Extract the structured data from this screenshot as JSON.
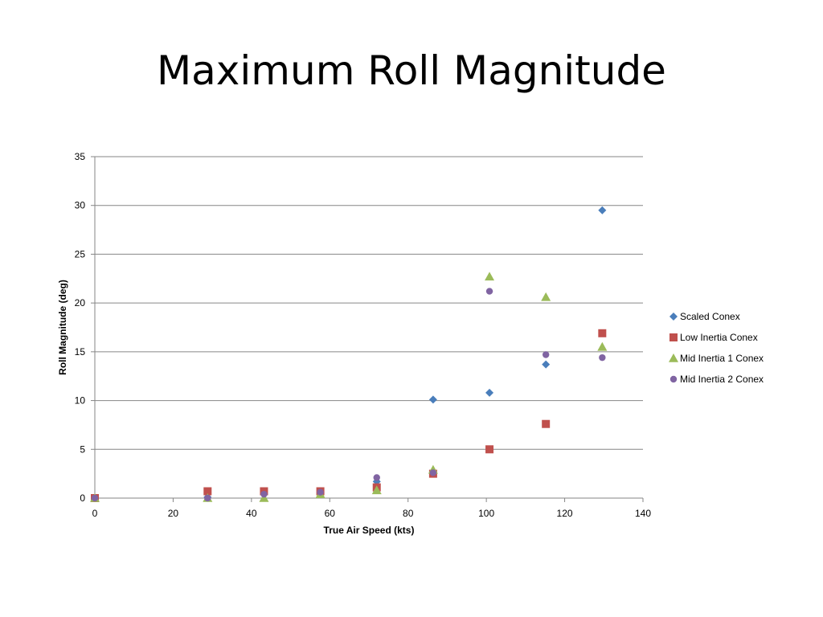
{
  "slide": {
    "title": "Maximum Roll Magnitude"
  },
  "chart_data": {
    "type": "scatter",
    "title": "",
    "xlabel": "True Air Speed (kts)",
    "ylabel": "Roll Magnitude (deg)",
    "xlim": [
      0,
      140
    ],
    "ylim": [
      0,
      35
    ],
    "xticks": [
      0,
      20,
      40,
      60,
      80,
      100,
      120,
      140
    ],
    "yticks": [
      0,
      5,
      10,
      15,
      20,
      25,
      30,
      35
    ],
    "grid": "horizontal",
    "legend": "right",
    "series": [
      {
        "name": "Scaled Conex",
        "marker": "diamond",
        "color": "#4a7ebb",
        "x": [
          0,
          28.8,
          43.2,
          57.6,
          72,
          86.4,
          100.8,
          115.2,
          129.6
        ],
        "y": [
          0,
          0.1,
          0.4,
          0.5,
          1.7,
          10.1,
          10.8,
          13.7,
          29.5
        ]
      },
      {
        "name": "Low Inertia Conex",
        "marker": "square",
        "color": "#c0504d",
        "x": [
          0,
          28.8,
          43.2,
          57.6,
          72,
          86.4,
          100.8,
          115.2,
          129.6
        ],
        "y": [
          0,
          0.7,
          0.7,
          0.7,
          1.1,
          2.5,
          5.0,
          7.6,
          16.9
        ]
      },
      {
        "name": "Mid Inertia 1 Conex",
        "marker": "triangle",
        "color": "#9bbb59",
        "x": [
          0,
          28.8,
          43.2,
          57.6,
          72,
          86.4,
          100.8,
          115.2,
          129.6
        ],
        "y": [
          0,
          0,
          0,
          0.4,
          0.8,
          2.9,
          22.7,
          20.6,
          15.5
        ]
      },
      {
        "name": "Mid Inertia 2 Conex",
        "marker": "circle",
        "color": "#8064a2",
        "x": [
          0,
          28.8,
          43.2,
          57.6,
          72,
          86.4,
          100.8,
          115.2,
          129.6
        ],
        "y": [
          0,
          0,
          0.4,
          0.6,
          2.1,
          2.6,
          21.2,
          14.7,
          14.4
        ]
      }
    ]
  }
}
